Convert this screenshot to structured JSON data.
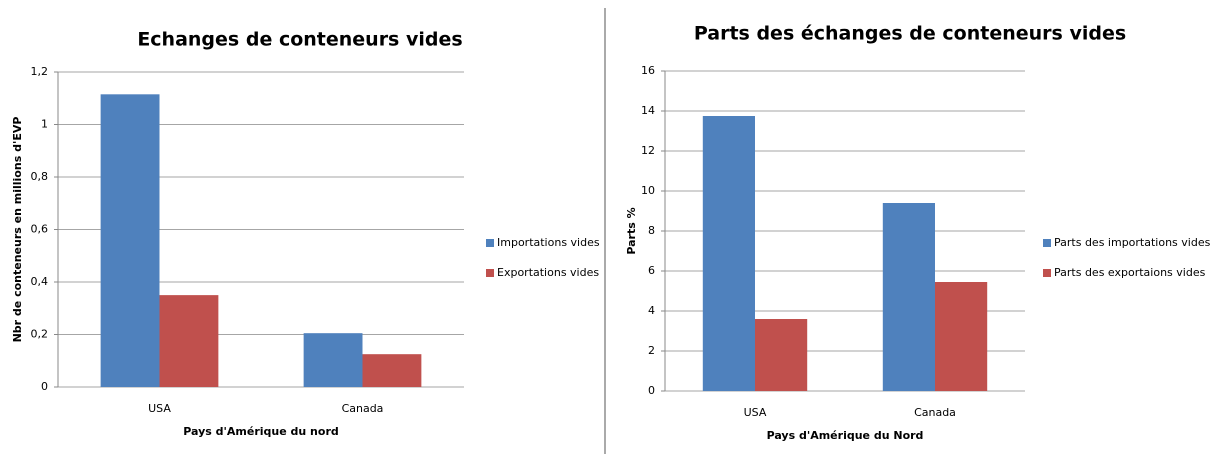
{
  "chart_data": [
    {
      "type": "bar",
      "title": "Echanges de conteneurs vides",
      "ylabel": "Nbr de conteneurs en millions d'EVP",
      "xlabel": "Pays d'Amérique du nord",
      "categories": [
        "USA",
        "Canada"
      ],
      "series": [
        {
          "name": "Importations vides",
          "color": "#4f81bd",
          "values": [
            1.115,
            0.205
          ]
        },
        {
          "name": "Exportations vides",
          "color": "#c0504d",
          "values": [
            0.35,
            0.125
          ]
        }
      ],
      "ylim": [
        0,
        1.2
      ],
      "yticks": [
        0,
        {
          "value": 0.2,
          "label": "0,2"
        },
        {
          "value": 0.4,
          "label": "0,4"
        },
        {
          "value": 0.6,
          "label": "0,6"
        },
        {
          "value": 0.8,
          "label": "0,8"
        },
        1,
        {
          "value": 1.2,
          "label": "1,2"
        }
      ],
      "grid": true,
      "legend": "right"
    },
    {
      "type": "bar",
      "title": "Parts des échanges de conteneurs vides",
      "ylabel": "Parts %",
      "xlabel": "Pays d'Amérique du Nord",
      "categories": [
        "USA",
        "Canada"
      ],
      "series": [
        {
          "name": "Parts des importations vides",
          "color": "#4f81bd",
          "values": [
            13.75,
            9.4
          ]
        },
        {
          "name": "Parts des exportaions vides",
          "color": "#c0504d",
          "values": [
            3.6,
            5.45
          ]
        }
      ],
      "ylim": [
        0,
        16
      ],
      "yticks": [
        0,
        2,
        4,
        6,
        8,
        10,
        12,
        14,
        16
      ],
      "grid": true,
      "legend": "right"
    }
  ]
}
